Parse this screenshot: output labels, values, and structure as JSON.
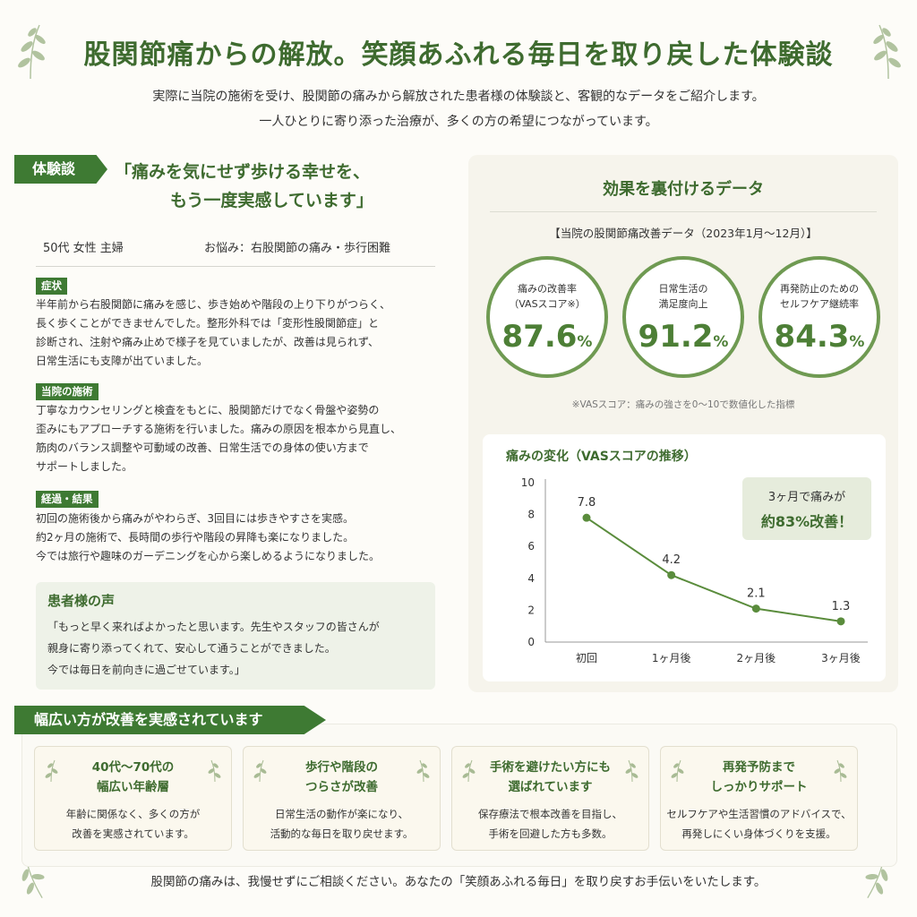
{
  "header": {
    "title": "股関節痛からの解放。笑顔あふれる毎日を取り戻した体験談",
    "intro_line1": "実際に当院の施術を受け、股関節の痛みから解放された患者様の体験談と、客観的なデータをご紹介します。",
    "intro_line2": "一人ひとりに寄り添った治療が、多くの方の希望につながっています。"
  },
  "story": {
    "tag": "体験談",
    "headline_line1": "「痛みを気にせず歩ける幸せを、",
    "headline_line2": "もう一度実感しています」",
    "profile": "50代 女性 主婦",
    "worry": "お悩み：右股関節の痛み・歩行困難",
    "symptoms_label": "症状",
    "symptoms_lines": [
      "半年前から右股関節に痛みを感じ、歩き始めや階段の上り下りがつらく、",
      "長く歩くことができませんでした。整形外科では「変形性股関節症」と",
      "診断され、注射や痛み止めで様子を見ていましたが、改善は見られず、",
      "日常生活にも支障が出ていました。"
    ],
    "treatment_label": "当院の施術",
    "treatment_lines": [
      "丁寧なカウンセリングと検査をもとに、股関節だけでなく骨盤や姿勢の",
      "歪みにもアプローチする施術を行いました。痛みの原因を根本から見直し、",
      "筋肉のバランス調整や可動域の改善、日常生活での身体の使い方まで",
      "サポートしました。"
    ],
    "result_label": "経過・結果",
    "result_lines": [
      "初回の施術後から痛みがやわらぎ、3回目には歩きやすさを実感。",
      "約2ヶ月の施術で、長時間の歩行や階段の昇降も楽になりました。",
      "今では旅行や趣味のガーデニングを心から楽しめるようになりました。"
    ]
  },
  "voice": {
    "title": "患者様の声",
    "lines": [
      "「もっと早く来ればよかったと思います。先生やスタッフの皆さんが",
      "親身に寄り添ってくれて、安心して通うことができました。",
      "今では毎日を前向きに過ごせています。」"
    ]
  },
  "data_panel": {
    "title": "効果を裏付けるデータ",
    "subtitle": "【当院の股関節痛改善データ（2023年1月～12月）】",
    "stats": [
      {
        "label_line1": "痛みの改善率",
        "label_line2": "（VASスコア※）",
        "value": "87.6",
        "unit": "%"
      },
      {
        "label_line1": "日常生活の",
        "label_line2": "満足度向上",
        "value": "91.2",
        "unit": "%"
      },
      {
        "label_line1": "再発防止のための",
        "label_line2": "セルフケア継続率",
        "value": "84.3",
        "unit": "%"
      }
    ],
    "note": "※VASスコア：痛みの強さを0～10で数値化した指標"
  },
  "chart_data": {
    "type": "line",
    "title": "痛みの変化（VASスコアの推移）",
    "categories": [
      "初回",
      "1ヶ月後",
      "2ヶ月後",
      "3ヶ月後"
    ],
    "values": [
      7.8,
      4.2,
      2.1,
      1.3
    ],
    "data_labels": [
      "7.8",
      "4.2",
      "2.1",
      "1.3"
    ],
    "ylim": [
      0,
      10
    ],
    "yticks": [
      0,
      2,
      4,
      6,
      8,
      10
    ],
    "ytick_labels": [
      "0",
      "2",
      "4",
      "6",
      "8",
      "10"
    ],
    "xlabel": "",
    "ylabel": "",
    "grid": false,
    "line_color": "#5a8c3c",
    "callout_line1": "3ヶ月で痛みが",
    "callout_line2": "約83%改善！"
  },
  "wide": {
    "tag": "幅広い方が改善を実感されています",
    "features": [
      {
        "title_line1": "40代～70代の",
        "title_line2": "幅広い年齢層",
        "desc_line1": "年齢に関係なく、多くの方が",
        "desc_line2": "改善を実感されています。"
      },
      {
        "title_line1": "歩行や階段の",
        "title_line2": "つらさが改善",
        "desc_line1": "日常生活の動作が楽になり、",
        "desc_line2": "活動的な毎日を取り戻せます。"
      },
      {
        "title_line1": "手術を避けたい方にも",
        "title_line2": "選ばれています",
        "desc_line1": "保存療法で根本改善を目指し、",
        "desc_line2": "手術を回避した方も多数。"
      },
      {
        "title_line1": "再発予防まで",
        "title_line2": "しっかりサポート",
        "desc_line1": "セルフケアや生活習慣のアドバイスで、",
        "desc_line2": "再発しにくい身体づくりを支援。"
      }
    ]
  },
  "footer": {
    "text": "股関節の痛みは、我慢せずにご相談ください。あなたの「笑顔あふれる毎日」を取り戻すお手伝いをいたします。"
  },
  "colors": {
    "accent": "#3e7a33",
    "title_green": "#3e6b2f",
    "ring": "#6f9a52",
    "panel_bg": "#f6f4ec",
    "voice_bg": "#eef2e8"
  },
  "icons": {
    "decor": "leaf-branch-icon"
  }
}
